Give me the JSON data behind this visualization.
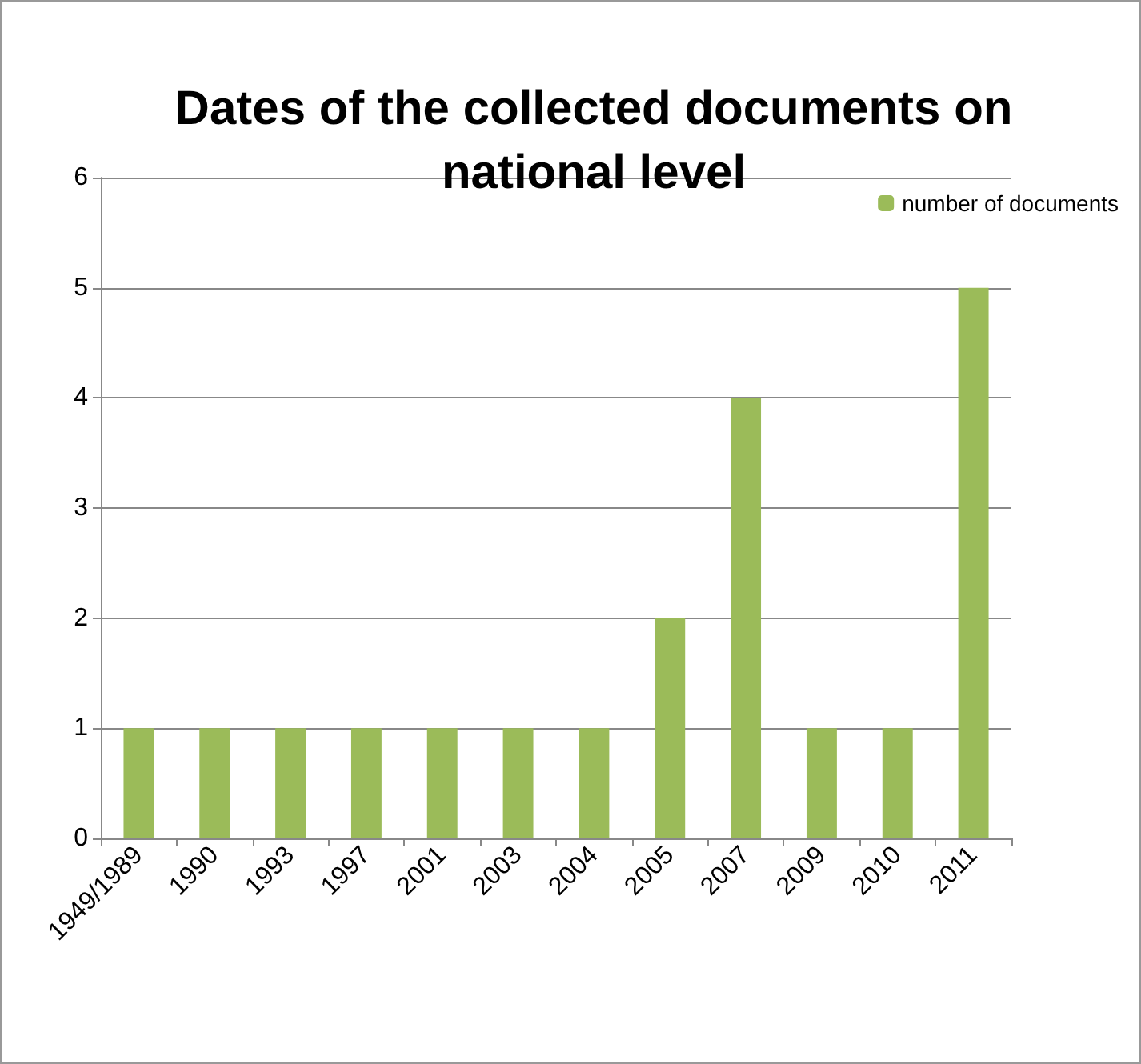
{
  "chart_data": {
    "type": "bar",
    "title": "Dates of the collected documents on\nnational level",
    "categories": [
      "1949/1989",
      "1990",
      "1993",
      "1997",
      "2001",
      "2003",
      "2004",
      "2005",
      "2007",
      "2009",
      "2010",
      "2011"
    ],
    "series": [
      {
        "name": "number of documents",
        "color": "#9bbb59",
        "values": [
          1,
          1,
          1,
          1,
          1,
          1,
          1,
          2,
          4,
          1,
          1,
          5
        ]
      }
    ],
    "ylim": [
      0,
      6
    ],
    "yticks": [
      0,
      1,
      2,
      3,
      4,
      5,
      6
    ],
    "grid": "y",
    "legend": "top right"
  }
}
